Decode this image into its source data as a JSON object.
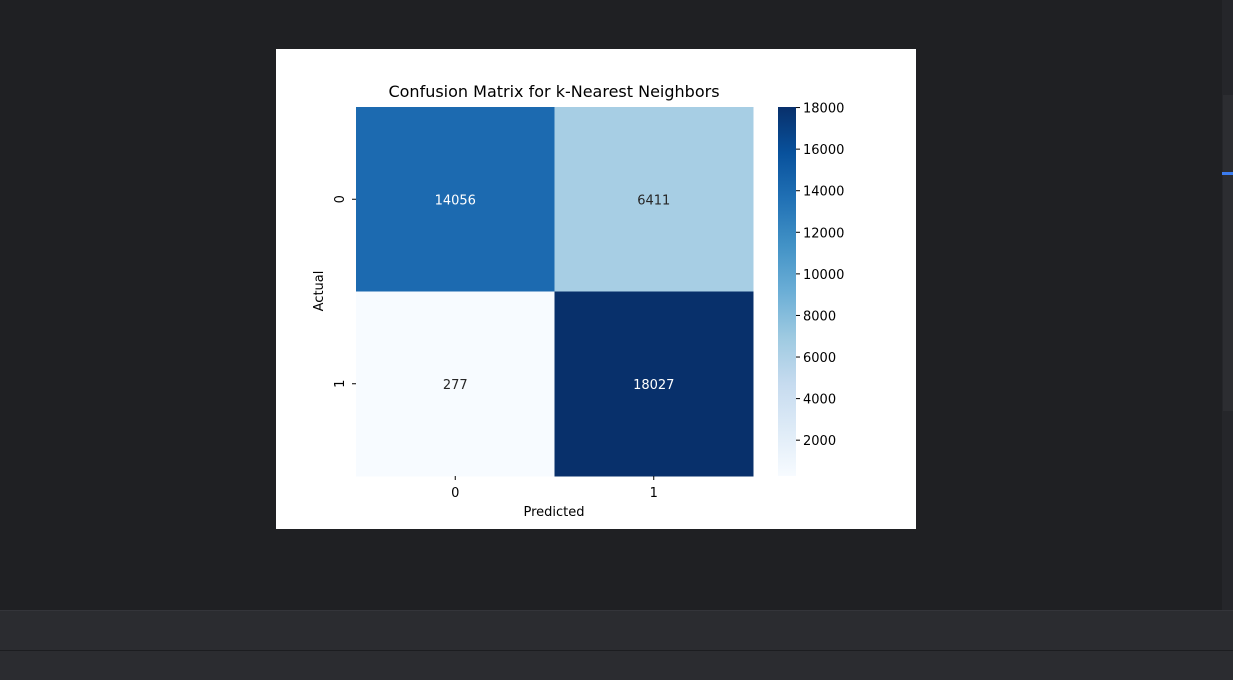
{
  "chart_data": {
    "type": "heatmap",
    "title": "Confusion Matrix for k-Nearest Neighbors",
    "xlabel": "Predicted",
    "ylabel": "Actual",
    "x_categories": [
      "0",
      "1"
    ],
    "y_categories": [
      "0",
      "1"
    ],
    "values": [
      [
        14056,
        6411
      ],
      [
        277,
        18027
      ]
    ],
    "annotations": [
      [
        "14056",
        "6411"
      ],
      [
        "277",
        "18027"
      ]
    ],
    "colormap": "Blues",
    "vmin": 277,
    "vmax": 18027,
    "colorbar_ticks": [
      2000,
      4000,
      6000,
      8000,
      10000,
      12000,
      14000,
      16000,
      18000
    ],
    "colorbar_tick_labels": [
      "2000",
      "4000",
      "6000",
      "8000",
      "10000",
      "12000",
      "14000",
      "16000",
      "18000"
    ],
    "colors": {
      "low": "#f7fbff",
      "high": "#08306b"
    }
  }
}
